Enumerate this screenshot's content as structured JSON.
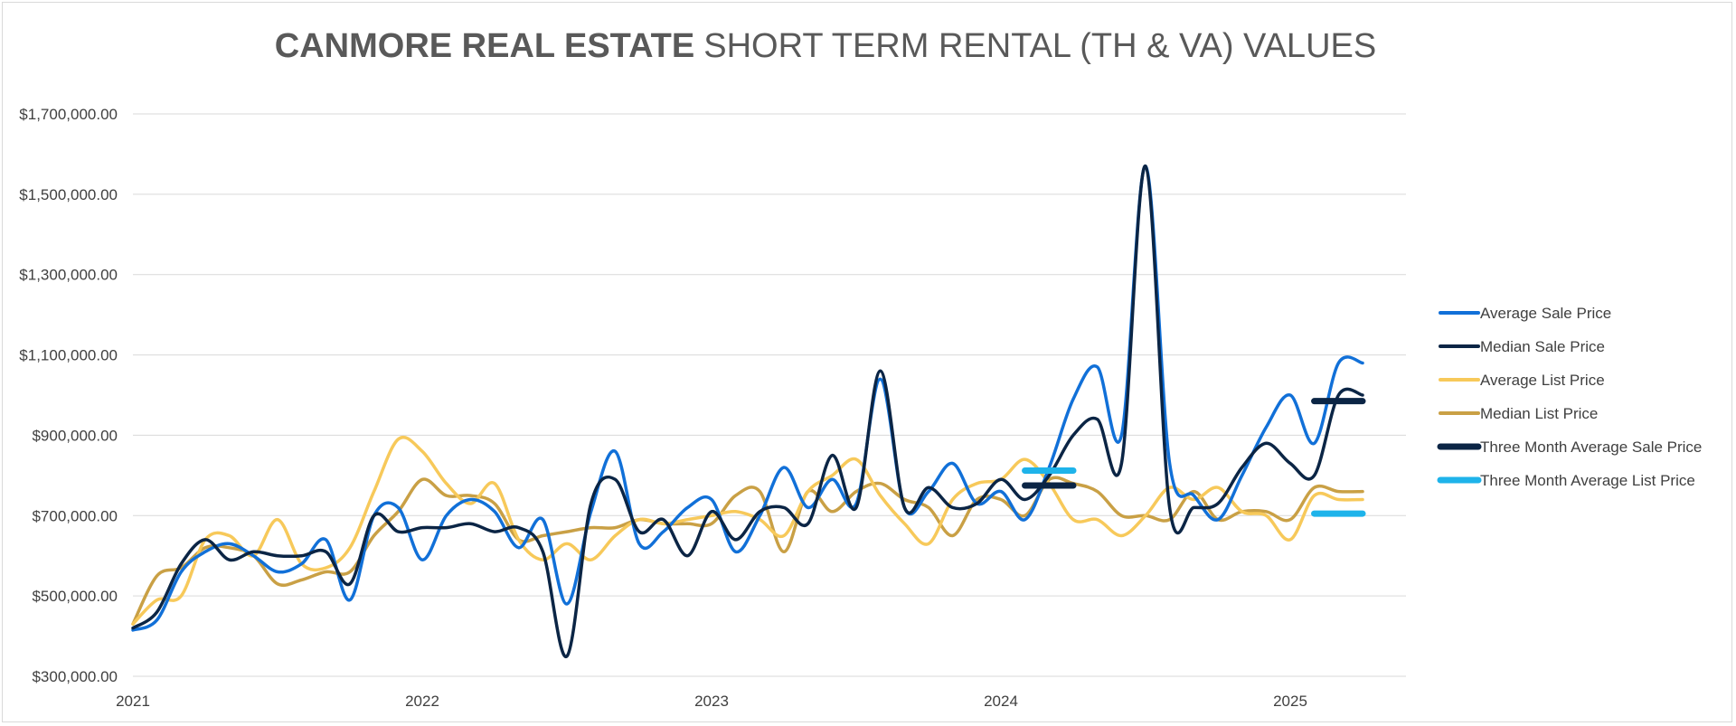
{
  "chart_data": {
    "type": "line",
    "title_bold": "CANMORE REAL ESTATE",
    "title_rest": "SHORT TERM RENTAL (TH & VA) VALUES",
    "ylim": [
      300000,
      1700000
    ],
    "xlim": [
      2021,
      2025.4
    ],
    "y_ticks": [
      {
        "value": 300000,
        "label": "$300,000.00"
      },
      {
        "value": 500000,
        "label": "$500,000.00"
      },
      {
        "value": 700000,
        "label": "$700,000.00"
      },
      {
        "value": 900000,
        "label": "$900,000.00"
      },
      {
        "value": 1100000,
        "label": "$1,100,000.00"
      },
      {
        "value": 1300000,
        "label": "$1,300,000.00"
      },
      {
        "value": 1500000,
        "label": "$1,500,000.00"
      },
      {
        "value": 1700000,
        "label": "$1,700,000.00"
      }
    ],
    "x_ticks": [
      {
        "value": 2021,
        "label": "2021"
      },
      {
        "value": 2022,
        "label": "2022"
      },
      {
        "value": 2023,
        "label": "2023"
      },
      {
        "value": 2024,
        "label": "2024"
      },
      {
        "value": 2025,
        "label": "2025"
      }
    ],
    "grid": true,
    "legend_position": "right",
    "series": [
      {
        "name": "Average Sale Price",
        "color": "#1170d8",
        "width": 3.5,
        "x": [
          2021.0,
          2021.083,
          2021.167,
          2021.25,
          2021.333,
          2021.417,
          2021.5,
          2021.583,
          2021.667,
          2021.75,
          2021.833,
          2021.917,
          2022.0,
          2022.083,
          2022.167,
          2022.25,
          2022.333,
          2022.417,
          2022.5,
          2022.583,
          2022.667,
          2022.75,
          2022.833,
          2022.917,
          2023.0,
          2023.083,
          2023.167,
          2023.25,
          2023.333,
          2023.417,
          2023.5,
          2023.583,
          2023.667,
          2023.75,
          2023.833,
          2023.917,
          2024.0,
          2024.083,
          2024.167,
          2024.25,
          2024.333,
          2024.417,
          2024.5,
          2024.583,
          2024.667,
          2024.75,
          2024.833,
          2024.917,
          2025.0,
          2025.083,
          2025.167,
          2025.25
        ],
        "y": [
          415000,
          440000,
          560000,
          610000,
          630000,
          600000,
          560000,
          580000,
          640000,
          490000,
          700000,
          720000,
          590000,
          700000,
          740000,
          710000,
          620000,
          690000,
          480000,
          710000,
          860000,
          630000,
          660000,
          720000,
          740000,
          610000,
          700000,
          820000,
          720000,
          790000,
          730000,
          1040000,
          720000,
          760000,
          830000,
          730000,
          760000,
          690000,
          820000,
          990000,
          1070000,
          900000,
          1570000,
          830000,
          750000,
          690000,
          800000,
          920000,
          1000000,
          880000,
          1080000,
          1080000
        ]
      },
      {
        "name": "Median Sale Price",
        "color": "#0b2545",
        "width": 3.5,
        "x": [
          2021.0,
          2021.083,
          2021.167,
          2021.25,
          2021.333,
          2021.417,
          2021.5,
          2021.583,
          2021.667,
          2021.75,
          2021.833,
          2021.917,
          2022.0,
          2022.083,
          2022.167,
          2022.25,
          2022.333,
          2022.417,
          2022.5,
          2022.583,
          2022.667,
          2022.75,
          2022.833,
          2022.917,
          2023.0,
          2023.083,
          2023.167,
          2023.25,
          2023.333,
          2023.417,
          2023.5,
          2023.583,
          2023.667,
          2023.75,
          2023.833,
          2023.917,
          2024.0,
          2024.083,
          2024.167,
          2024.25,
          2024.333,
          2024.417,
          2024.5,
          2024.583,
          2024.667,
          2024.75,
          2024.833,
          2024.917,
          2025.0,
          2025.083,
          2025.167,
          2025.25
        ],
        "y": [
          420000,
          460000,
          580000,
          640000,
          590000,
          610000,
          600000,
          600000,
          610000,
          530000,
          700000,
          660000,
          670000,
          670000,
          680000,
          660000,
          670000,
          610000,
          350000,
          730000,
          790000,
          660000,
          690000,
          600000,
          710000,
          640000,
          710000,
          720000,
          680000,
          850000,
          720000,
          1060000,
          720000,
          770000,
          720000,
          730000,
          790000,
          740000,
          800000,
          900000,
          940000,
          830000,
          1570000,
          720000,
          720000,
          730000,
          820000,
          880000,
          830000,
          800000,
          1000000,
          1000000
        ]
      },
      {
        "name": "Average List Price",
        "color": "#f7c95a",
        "width": 3.5,
        "x": [
          2021.0,
          2021.083,
          2021.167,
          2021.25,
          2021.333,
          2021.417,
          2021.5,
          2021.583,
          2021.667,
          2021.75,
          2021.833,
          2021.917,
          2022.0,
          2022.083,
          2022.167,
          2022.25,
          2022.333,
          2022.417,
          2022.5,
          2022.583,
          2022.667,
          2022.75,
          2022.833,
          2022.917,
          2023.0,
          2023.083,
          2023.167,
          2023.25,
          2023.333,
          2023.417,
          2023.5,
          2023.583,
          2023.667,
          2023.75,
          2023.833,
          2023.917,
          2024.0,
          2024.083,
          2024.167,
          2024.25,
          2024.333,
          2024.417,
          2024.5,
          2024.583,
          2024.667,
          2024.75,
          2024.833,
          2024.917,
          2025.0,
          2025.083,
          2025.167,
          2025.25
        ],
        "y": [
          430000,
          490000,
          500000,
          640000,
          650000,
          600000,
          690000,
          580000,
          570000,
          620000,
          760000,
          890000,
          860000,
          780000,
          730000,
          780000,
          640000,
          590000,
          630000,
          590000,
          650000,
          690000,
          680000,
          690000,
          700000,
          710000,
          690000,
          650000,
          760000,
          800000,
          840000,
          750000,
          680000,
          630000,
          740000,
          780000,
          790000,
          840000,
          780000,
          690000,
          690000,
          650000,
          700000,
          770000,
          740000,
          770000,
          710000,
          700000,
          640000,
          750000,
          740000,
          740000
        ]
      },
      {
        "name": "Median List Price",
        "color": "#c9a045",
        "width": 3.5,
        "x": [
          2021.0,
          2021.083,
          2021.167,
          2021.25,
          2021.333,
          2021.417,
          2021.5,
          2021.583,
          2021.667,
          2021.75,
          2021.833,
          2021.917,
          2022.0,
          2022.083,
          2022.167,
          2022.25,
          2022.333,
          2022.417,
          2022.5,
          2022.583,
          2022.667,
          2022.75,
          2022.833,
          2022.917,
          2023.0,
          2023.083,
          2023.167,
          2023.25,
          2023.333,
          2023.417,
          2023.5,
          2023.583,
          2023.667,
          2023.75,
          2023.833,
          2023.917,
          2024.0,
          2024.083,
          2024.167,
          2024.25,
          2024.333,
          2024.417,
          2024.5,
          2024.583,
          2024.667,
          2024.75,
          2024.833,
          2024.917,
          2025.0,
          2025.083,
          2025.167,
          2025.25
        ],
        "y": [
          430000,
          550000,
          570000,
          620000,
          620000,
          600000,
          530000,
          540000,
          560000,
          560000,
          650000,
          710000,
          790000,
          750000,
          750000,
          730000,
          640000,
          650000,
          660000,
          670000,
          670000,
          690000,
          680000,
          680000,
          680000,
          750000,
          760000,
          610000,
          760000,
          710000,
          760000,
          780000,
          740000,
          720000,
          650000,
          740000,
          740000,
          700000,
          790000,
          780000,
          760000,
          700000,
          700000,
          690000,
          760000,
          690000,
          710000,
          710000,
          690000,
          770000,
          760000,
          760000
        ]
      },
      {
        "name": "Three Month Average Sale Price",
        "color": "#0b2545",
        "width": 7,
        "segments": [
          {
            "x": [
              2024.083,
              2024.25
            ],
            "y": [
              775000,
              775000
            ]
          },
          {
            "x": [
              2025.083,
              2025.25
            ],
            "y": [
              985000,
              985000
            ]
          }
        ]
      },
      {
        "name": "Three Month Average List Price",
        "color": "#1eb3ea",
        "width": 7,
        "segments": [
          {
            "x": [
              2024.083,
              2024.25
            ],
            "y": [
              812000,
              812000
            ]
          },
          {
            "x": [
              2025.083,
              2025.25
            ],
            "y": [
              705000,
              705000
            ]
          }
        ]
      }
    ]
  }
}
